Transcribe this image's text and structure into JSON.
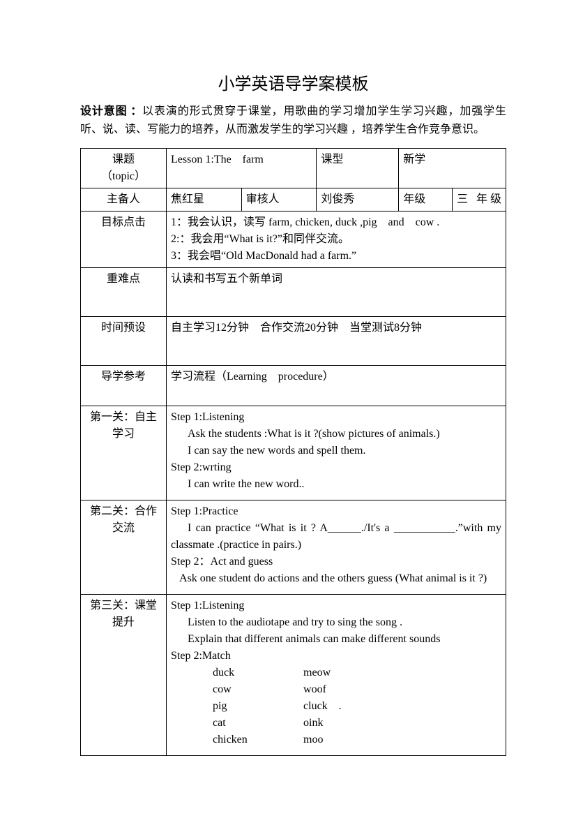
{
  "title": "小学英语导学案模板",
  "intro": {
    "label": "设计意图 ：",
    "text": "以表演的形式贯穿于课堂，用歌曲的学习增加学生学习兴趣，加强学生听、说、读、写能力的培养，从而激发学生的学习兴趣 ，培养学生合作竞争意识。"
  },
  "rows": {
    "topic": {
      "label": "课题\n（topic）",
      "lesson": "Lesson 1:The　farm",
      "type_label": "课型",
      "type_value": "新学"
    },
    "preparer": {
      "label": "主备人",
      "name": "焦红星",
      "reviewer_label": "审核人",
      "reviewer": "刘俊秀",
      "grade_label": "年级",
      "grade": "三 年级"
    },
    "objectives": {
      "label": "目标点击",
      "line1": "1：我会认识，读写 farm, chicken, duck ,pig　and　cow .",
      "line2": "2:：我会用“What is it?”和同伴交流。",
      "line3": "3：我会唱“Old MacDonald had a farm.”"
    },
    "difficulty": {
      "label": "重难点",
      "text": "认读和书写五个新单词"
    },
    "time": {
      "label": "时间预设",
      "text": "自主学习12分钟　合作交流20分钟　当堂测试8分钟"
    },
    "reference": {
      "label": "导学参考",
      "text": "学习流程（Learning　procedure）"
    },
    "stage1": {
      "label": "第一关：自主学习",
      "s1": "Step 1:Listening",
      "s1a": "Ask the students :What is it ?(show pictures of animals.)",
      "s1b": "I can say the new words and spell them.",
      "s2": "Step 2:wrting",
      "s2a": "I can write the new word.."
    },
    "stage2": {
      "label": "第二关：合作交流",
      "s1": "Step 1:Practice",
      "s1a": "I can practice “What is it ? A______./It's a ___________.”with my classmate .(practice in pairs.)",
      "s2": "Step 2：Act and guess",
      "s2a": "Ask one student do actions and the others guess (What animal is it ?)"
    },
    "stage3": {
      "label": "第三关：课堂提升",
      "s1": "Step 1:Listening",
      "s1a": "Listen to the audiotape and try to sing the song .",
      "s1b": "Explain that different animals can make different sounds",
      "s2": "Step 2:Match",
      "match": [
        [
          "duck",
          "meow"
        ],
        [
          "cow",
          "woof"
        ],
        [
          "pig",
          "cluck　."
        ],
        [
          "cat",
          "oink"
        ],
        [
          "chicken",
          "moo"
        ]
      ]
    }
  }
}
